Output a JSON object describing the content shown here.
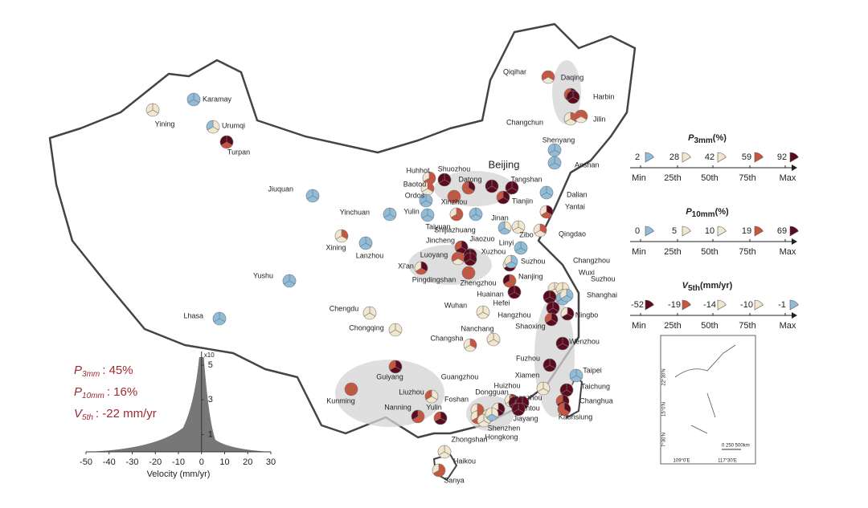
{
  "cities": [
    "Karamay",
    "Yining",
    "Urumqi",
    "Turpan",
    "Jiuquan",
    "Yinchuan",
    "Xining",
    "Lanzhou",
    "Yushu",
    "Lhasa",
    "Qiqihar",
    "Daqing",
    "Harbin",
    "Changchun",
    "Jilin",
    "Shenyang",
    "Anshan",
    "Dalian",
    "Yantai",
    "Qingdao",
    "Huhhot",
    "Baotou",
    "Ordos",
    "Yulin",
    "Shuozhou",
    "Datong",
    "Beijing",
    "Tangshan",
    "Tianjin",
    "Xinzhou",
    "Taiyuan",
    "Shijiazhuang",
    "Jinan",
    "Zibo",
    "Linyi",
    "Jincheng",
    "Jiaozuo",
    "Luoyang",
    "Xuzhou",
    "Xi'an",
    "Pingdingshan",
    "Zhengzhou",
    "Suzhou",
    "Changzhou",
    "Wuxi",
    "Suzhou",
    "Nanjing",
    "Shanghai",
    "Huainan",
    "Hefei",
    "Wuhan",
    "Chengdu",
    "Chongqing",
    "Hangzhou",
    "Ningbo",
    "Shaoxing",
    "Nanchang",
    "Changsha",
    "Wenzhou",
    "Fuzhou",
    "Taipei",
    "Xiamen",
    "Taichung",
    "Guiyang",
    "Guangzhou",
    "Huizhou",
    "Liuzhou",
    "Kunming",
    "Dongguan",
    "Chaozhou",
    "Changhua",
    "Foshan",
    "Shantou",
    "Nanning",
    "Yulin",
    "Kaohsiung",
    "Jiayang",
    "Shenzhen",
    "Zhongshan",
    "Hongkong",
    "Haikou",
    "Sanya"
  ],
  "legend": {
    "scale_labels": [
      "Min",
      "25th",
      "50th",
      "75th",
      "Max"
    ],
    "p3mm": {
      "symbol": "P",
      "subscript": "3mm",
      "unit": "(%)",
      "values": [
        2,
        28,
        42,
        59,
        92
      ]
    },
    "p10mm": {
      "symbol": "P",
      "subscript": "10mm",
      "unit": "(%)",
      "values": [
        0,
        5,
        10,
        19,
        69
      ]
    },
    "v5th": {
      "symbol": "V",
      "subscript": "5th",
      "unit": "(mm/yr)",
      "values": [
        -52,
        -19,
        -14,
        -10,
        -1
      ]
    }
  },
  "summary": [
    {
      "symbol": "P",
      "subscript": "3mm",
      "text": ": 45%"
    },
    {
      "symbol": "P",
      "subscript": "10mm",
      "text": ": 16%"
    },
    {
      "symbol": "V",
      "subscript": "5th",
      "text": ": -22 mm/yr"
    }
  ],
  "histogram": {
    "xticks": [
      -50,
      -40,
      -30,
      -20,
      -10,
      0,
      10,
      20,
      30
    ],
    "yticks": [
      1,
      3,
      5
    ],
    "multiplier": "x10",
    "xlabel": "Velocity (mm/yr)"
  },
  "inset": {
    "lat_labels": [
      "22°30'N",
      "15°0'N",
      "7°30'N"
    ],
    "lon_labels": [
      "109°0'E",
      "117°30'E"
    ],
    "scale": "0  250  500km"
  }
}
